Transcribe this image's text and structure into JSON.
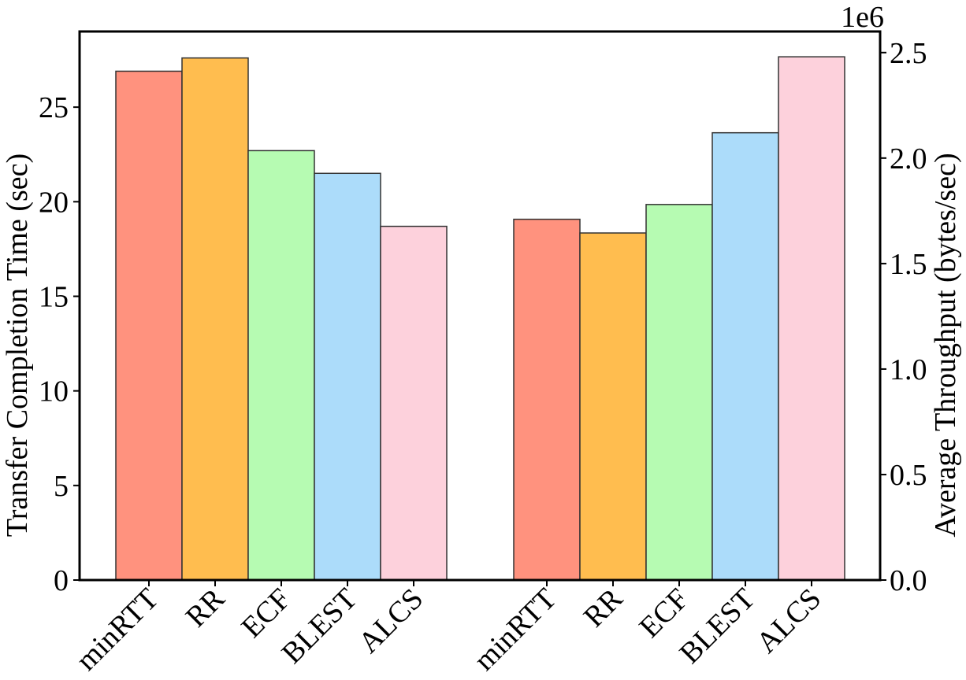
{
  "chart_data": {
    "type": "bar",
    "categories": [
      "minRTT",
      "RR",
      "ECF",
      "BLEST",
      "ALCS"
    ],
    "colors": [
      "#ff927e",
      "#ffbd4f",
      "#b6fbb2",
      "#acdcfa",
      "#fdd1dc"
    ],
    "left_group": {
      "ylabel": "Transfer Completion Time (sec)",
      "values": [
        26.9,
        27.6,
        22.7,
        21.5,
        18.7
      ],
      "ylim": [
        0,
        29
      ],
      "yticks": [
        0,
        5,
        10,
        15,
        20,
        25
      ],
      "ytick_labels": [
        "0",
        "5",
        "10",
        "15",
        "20",
        "25"
      ]
    },
    "right_group": {
      "ylabel": "Average Throughput (bytes/sec)",
      "values": [
        1.71,
        1.645,
        1.78,
        2.12,
        2.48
      ],
      "ylim": [
        0,
        2.6
      ],
      "yticks": [
        0,
        0.5,
        1.0,
        1.5,
        2.0,
        2.5
      ],
      "ytick_labels": [
        "0.0",
        "0.5",
        "1.0",
        "1.5",
        "2.0",
        "2.5"
      ],
      "offset_label": "1e6"
    },
    "grid": false,
    "legend": "none"
  }
}
